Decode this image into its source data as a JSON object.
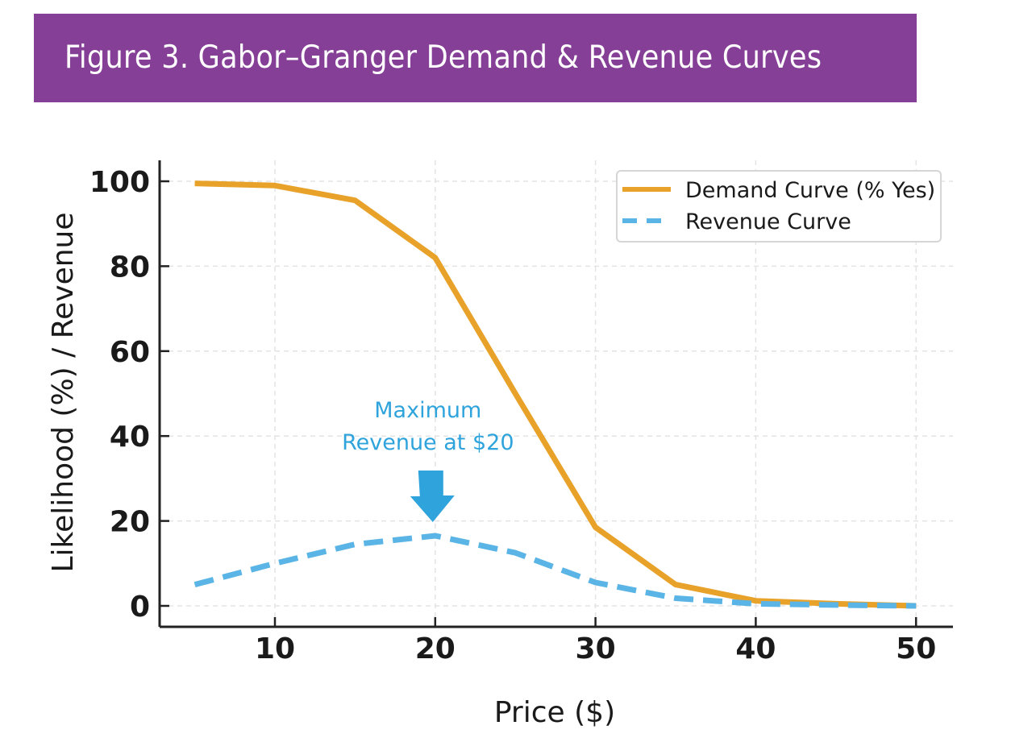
{
  "header": {
    "title": "Figure 3. Gabor–Granger Demand & Revenue Curves"
  },
  "colors": {
    "banner": "#853f96",
    "demand": "#e8a22a",
    "revenue": "#5ab4e5",
    "annotation": "#2fa3dc"
  },
  "chart_data": {
    "type": "line",
    "title": "Figure 3. Gabor–Granger Demand & Revenue Curves",
    "xlabel": "Price ($)",
    "ylabel": "Likelihood (%) / Revenue",
    "xlim": [
      3.5,
      52
    ],
    "ylim": [
      -5,
      105
    ],
    "xticks": [
      10,
      20,
      30,
      40,
      50
    ],
    "yticks": [
      0,
      20,
      40,
      60,
      80,
      100
    ],
    "grid": true,
    "legend_position": "top-right",
    "x": [
      5,
      10,
      15,
      20,
      25,
      30,
      35,
      40,
      45,
      50
    ],
    "series": [
      {
        "name": "Demand Curve (% Yes)",
        "style": "solid",
        "color": "#e8a22a",
        "values": [
          99.5,
          99,
          95.5,
          82,
          50,
          18.5,
          5,
          1.2,
          0.5,
          0
        ]
      },
      {
        "name": "Revenue Curve",
        "style": "dashed",
        "color": "#5ab4e5",
        "values": [
          5,
          10,
          14.5,
          16.5,
          12.5,
          5.5,
          1.8,
          0.5,
          0.2,
          0
        ]
      }
    ],
    "annotations": [
      {
        "lines": [
          "Maximum",
          "Revenue at $20"
        ],
        "x": 20,
        "y": 16.5,
        "arrow": "down"
      }
    ]
  }
}
